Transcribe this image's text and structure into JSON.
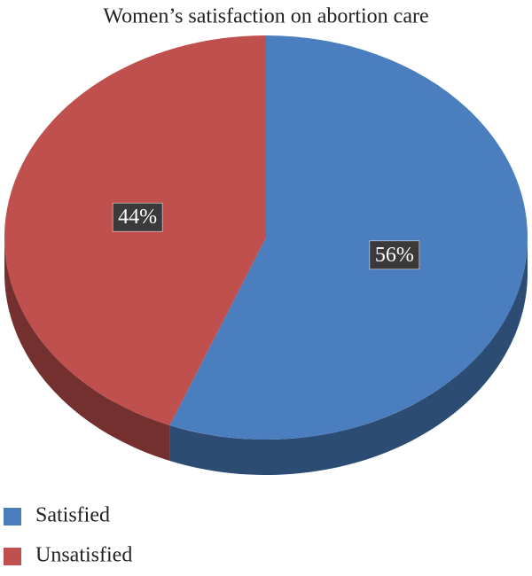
{
  "chart_data": {
    "type": "pie",
    "title": "Women’s satisfaction on abortion care",
    "categories": [
      "Satisfied",
      "Unsatisfied"
    ],
    "values": [
      56,
      44
    ],
    "value_labels": [
      "56%",
      "44%"
    ],
    "colors": [
      "#4a7ebf",
      "#c0504d"
    ],
    "legend": "bottom-left"
  }
}
